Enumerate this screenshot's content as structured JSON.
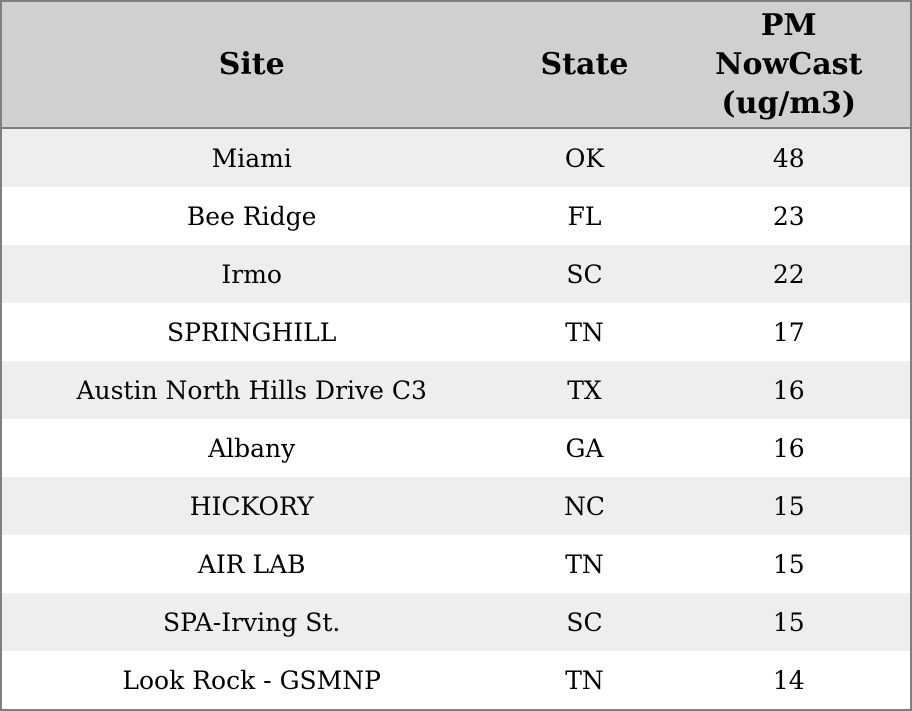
{
  "chart_data": {
    "type": "table",
    "columns": [
      {
        "key": "site",
        "label": "Site"
      },
      {
        "key": "state",
        "label": "State"
      },
      {
        "key": "pm_nowcast",
        "label": "PM\nNowCast\n(ug/m3)",
        "label_flat": "PM NowCast (ug/m3)"
      }
    ],
    "rows": [
      {
        "site": "Miami",
        "state": "OK",
        "pm_nowcast": 48
      },
      {
        "site": "Bee Ridge",
        "state": "FL",
        "pm_nowcast": 23
      },
      {
        "site": "Irmo",
        "state": "SC",
        "pm_nowcast": 22
      },
      {
        "site": "SPRINGHILL",
        "state": "TN",
        "pm_nowcast": 17
      },
      {
        "site": "Austin North Hills Drive C3",
        "state": "TX",
        "pm_nowcast": 16
      },
      {
        "site": "Albany",
        "state": "GA",
        "pm_nowcast": 16
      },
      {
        "site": "HICKORY",
        "state": "NC",
        "pm_nowcast": 15
      },
      {
        "site": "AIR LAB",
        "state": "TN",
        "pm_nowcast": 15
      },
      {
        "site": "SPA-Irving St.",
        "state": "SC",
        "pm_nowcast": 15
      },
      {
        "site": "Look Rock - GSMNP",
        "state": "TN",
        "pm_nowcast": 14
      }
    ],
    "layout": {
      "header_alignment": "center",
      "cell_alignment": "center",
      "alternating_rows": true
    }
  },
  "colors": {
    "header_bg": "#d0d0d0",
    "row_alt_bg": "#eeeeee",
    "row_bg": "#ffffff",
    "border": "#7f7f7f",
    "text": "#000000"
  }
}
